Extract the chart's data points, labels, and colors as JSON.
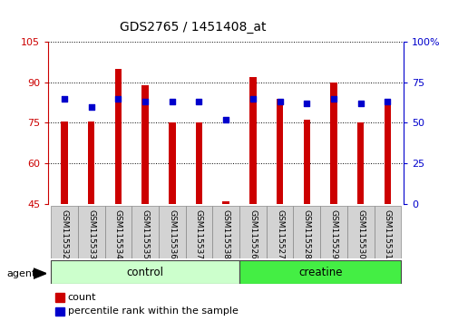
{
  "title": "GDS2765 / 1451408_at",
  "samples": [
    "GSM115532",
    "GSM115533",
    "GSM115534",
    "GSM115535",
    "GSM115536",
    "GSM115537",
    "GSM115538",
    "GSM115526",
    "GSM115527",
    "GSM115528",
    "GSM115529",
    "GSM115530",
    "GSM115531"
  ],
  "counts": [
    75.5,
    75.5,
    95,
    89,
    75,
    75,
    46,
    92,
    84,
    76,
    90,
    75,
    83
  ],
  "percentile_ranks": [
    65,
    60,
    65,
    63,
    63,
    63,
    52,
    65,
    63,
    62,
    65,
    62,
    63
  ],
  "ylim_left": [
    45,
    105
  ],
  "ylim_right": [
    0,
    100
  ],
  "yticks_left": [
    45,
    60,
    75,
    90,
    105
  ],
  "yticks_right": [
    0,
    25,
    50,
    75,
    100
  ],
  "ytick_right_labels": [
    "0",
    "25",
    "50",
    "75",
    "100%"
  ],
  "groups": [
    {
      "label": "control",
      "start": 0,
      "end": 7,
      "color": "#ccffcc"
    },
    {
      "label": "creatine",
      "start": 7,
      "end": 13,
      "color": "#44ee44"
    }
  ],
  "bar_color": "#cc0000",
  "dot_color": "#0000cc",
  "bar_width": 0.25,
  "bg_color": "#ffffff",
  "tick_label_bg": "#d3d3d3",
  "agent_label": "agent",
  "legend_count_label": "count",
  "legend_percentile_label": "percentile rank within the sample",
  "left_axis_color": "#cc0000",
  "right_axis_color": "#0000cc"
}
